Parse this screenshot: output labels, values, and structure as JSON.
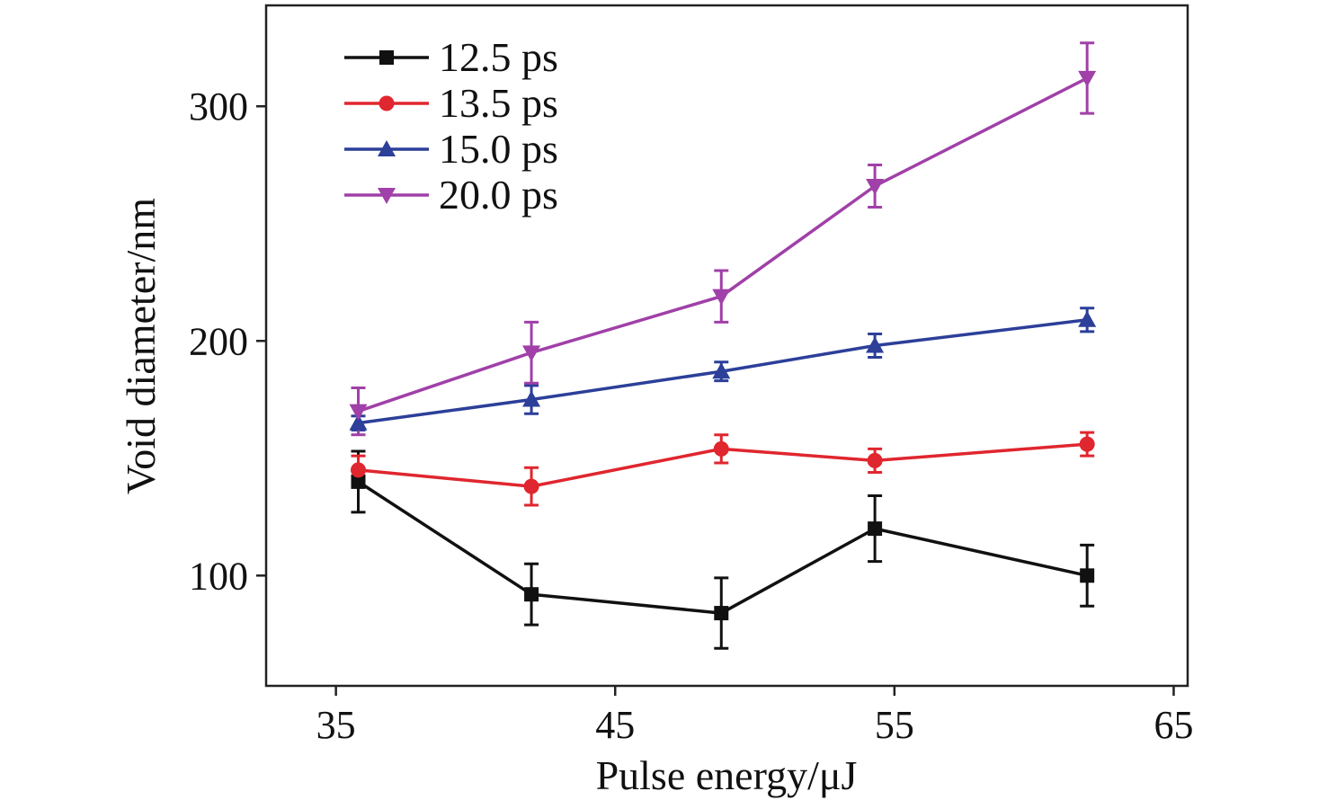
{
  "chart_data": {
    "type": "line",
    "xlabel": "Pulse energy/μJ",
    "ylabel": "Void diameter/nm",
    "xlim": [
      32.5,
      65.5
    ],
    "ylim": [
      53,
      343
    ],
    "xticks": [
      35,
      45,
      55,
      65
    ],
    "yticks": [
      100,
      200,
      300
    ],
    "xtick_labels": [
      "35",
      "45",
      "55",
      "65"
    ],
    "ytick_labels": [
      "100",
      "200",
      "300"
    ],
    "grid": false,
    "legend_position": "top-left",
    "x": [
      35.8,
      42.0,
      48.8,
      54.3,
      61.9
    ],
    "series": [
      {
        "name": "12.5 ps",
        "color": "#111111",
        "marker": "square",
        "values": [
          140,
          92,
          84,
          120,
          100
        ],
        "errors": [
          13,
          13,
          15,
          14,
          13
        ]
      },
      {
        "name": "13.5 ps",
        "color": "#e0262e",
        "marker": "circle",
        "values": [
          145,
          138,
          154,
          149,
          156
        ],
        "errors": [
          6,
          8,
          6,
          5,
          5
        ]
      },
      {
        "name": "15.0 ps",
        "color": "#2c3f99",
        "marker": "triangle-up",
        "values": [
          165,
          175,
          187,
          198,
          209
        ],
        "errors": [
          3,
          6,
          4,
          5,
          5
        ]
      },
      {
        "name": "20.0 ps",
        "color": "#a040a8",
        "marker": "triangle-down",
        "values": [
          170,
          195,
          219,
          266,
          312
        ],
        "errors": [
          10,
          13,
          11,
          9,
          15
        ]
      }
    ]
  }
}
